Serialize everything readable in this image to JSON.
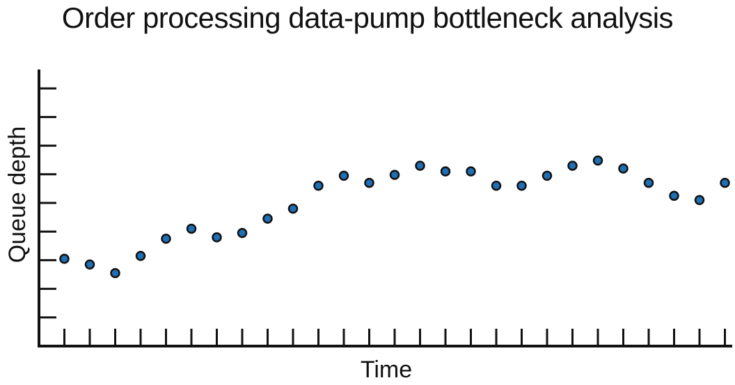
{
  "chart_data": {
    "type": "scatter",
    "title": "Order processing data-pump bottleneck analysis",
    "xlabel": "Time",
    "ylabel": "Queue depth",
    "x_tick_count": 27,
    "y_tick_count": 9,
    "xlim": [
      0,
      27
    ],
    "ylim": [
      0,
      9.7
    ],
    "grid": false,
    "legend": "none",
    "point_color": "#1f6fb5",
    "point_edge_color": "#111111",
    "x": [
      1,
      2,
      3,
      4,
      5,
      6,
      7,
      8,
      9,
      10,
      11,
      12,
      13,
      14,
      15,
      16,
      17,
      18,
      19,
      20,
      21,
      22,
      23,
      24,
      25,
      26,
      27
    ],
    "y": [
      3.05,
      2.85,
      2.55,
      3.15,
      3.75,
      4.1,
      3.8,
      3.95,
      4.45,
      4.8,
      5.6,
      5.95,
      5.7,
      5.98,
      6.3,
      6.1,
      6.1,
      5.6,
      5.6,
      5.95,
      6.3,
      6.48,
      6.2,
      5.7,
      5.25,
      5.1,
      5.7
    ]
  }
}
